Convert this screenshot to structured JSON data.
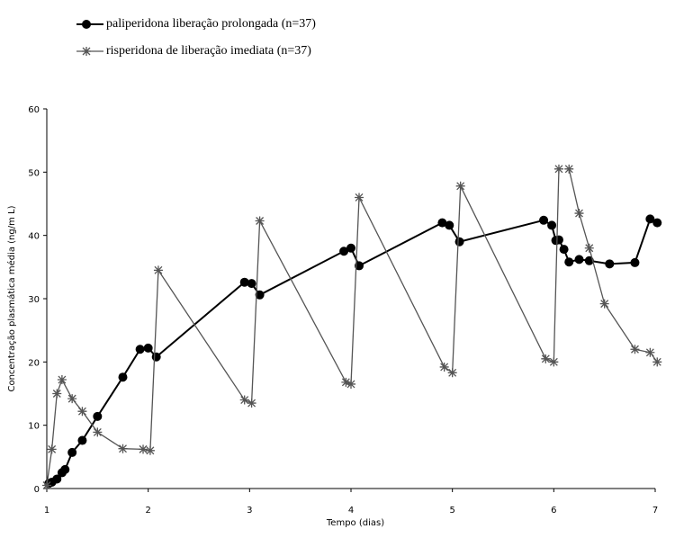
{
  "chart_data": {
    "type": "line",
    "x_label": "Tempo (dias)",
    "y_label": "Concentração plasmática média (ng/m L)",
    "xlim": [
      1,
      7
    ],
    "xticks": [
      1,
      2,
      3,
      4,
      5,
      6,
      7
    ],
    "ylim": [
      0,
      60
    ],
    "yticks": [
      0,
      10,
      20,
      30,
      40,
      50,
      60
    ],
    "series": [
      {
        "name": "paliperidona liberação prolongada (n=37)",
        "color": "#000000",
        "marker": "circle",
        "x": [
          1.02,
          1.05,
          1.1,
          1.15,
          1.18,
          1.25,
          1.35,
          1.5,
          1.75,
          1.92,
          2.0,
          2.08,
          2.95,
          3.02,
          3.1,
          3.93,
          4.0,
          4.08,
          4.9,
          4.97,
          5.07,
          5.9,
          5.98,
          6.02,
          6.05,
          6.1,
          6.15,
          6.25,
          6.35,
          6.55,
          6.8,
          6.95,
          7.02
        ],
        "values": [
          0.8,
          1,
          1.5,
          2.5,
          3,
          5.7,
          7.6,
          11.4,
          17.6,
          22,
          22.2,
          20.8,
          32.6,
          32.4,
          30.6,
          37.5,
          38,
          35.2,
          42,
          41.6,
          39,
          42.4,
          41.6,
          39.2,
          39.3,
          37.8,
          35.8,
          36.2,
          36,
          35.5,
          35.7,
          42.6,
          42
        ]
      },
      {
        "name": "risperidona de liberação imediata (n=37)",
        "color": "#555555",
        "marker": "star",
        "x": [
          1.0,
          1.05,
          1.1,
          1.15,
          1.25,
          1.35,
          1.5,
          1.75,
          1.95,
          2.02,
          2.1,
          2.95,
          3.02,
          3.1,
          3.95,
          4.0,
          4.08,
          4.92,
          5.0,
          5.08,
          5.92,
          6.0,
          6.05,
          6.1,
          6.15,
          6.25,
          6.35,
          6.5,
          6.8,
          6.95,
          7.02
        ],
        "values": [
          0.5,
          6.2,
          15,
          17.2,
          14.2,
          12.2,
          8.9,
          6.3,
          6.2,
          6,
          34.5,
          14,
          13.5,
          42.3,
          16.8,
          16.5,
          46,
          19.2,
          18.3,
          47.8,
          20.5,
          20,
          50.5,
          null,
          50.5,
          43.5,
          38,
          29.2,
          22,
          21.5,
          20
        ]
      }
    ]
  }
}
